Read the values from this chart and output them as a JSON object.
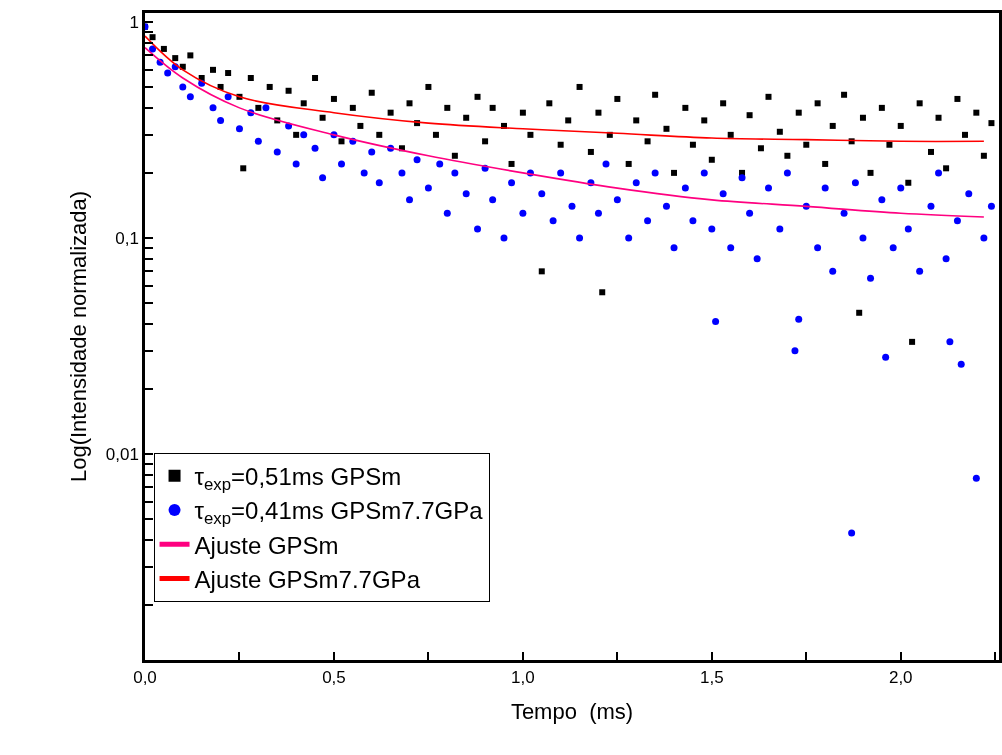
{
  "chart_data": {
    "type": "scatter",
    "xlabel": "Tempo  (ms)",
    "ylabel": "Log(Intensidade normalizada)",
    "log": "y",
    "xlim": [
      0,
      2.26
    ],
    "ylim": [
      0.00111,
      1.1
    ],
    "xticks": [
      {
        "value": 0,
        "label": "0,0"
      },
      {
        "value": 0.25,
        "label": null
      },
      {
        "value": 0.5,
        "label": "0,5"
      },
      {
        "value": 0.75,
        "label": null
      },
      {
        "value": 1.0,
        "label": "1,0"
      },
      {
        "value": 1.25,
        "label": null
      },
      {
        "value": 1.5,
        "label": "1,5"
      },
      {
        "value": 1.75,
        "label": null
      },
      {
        "value": 2.0,
        "label": "2,0"
      },
      {
        "value": 2.25,
        "label": null
      }
    ],
    "yticks": [
      {
        "value": 0.002,
        "label": null
      },
      {
        "value": 0.003,
        "label": null
      },
      {
        "value": 0.004,
        "label": null
      },
      {
        "value": 0.005,
        "label": null
      },
      {
        "value": 0.006,
        "label": null
      },
      {
        "value": 0.007,
        "label": null
      },
      {
        "value": 0.008,
        "label": null
      },
      {
        "value": 0.009,
        "label": null
      },
      {
        "value": 0.01,
        "label": "0,01"
      },
      {
        "value": 0.02,
        "label": null
      },
      {
        "value": 0.03,
        "label": null
      },
      {
        "value": 0.04,
        "label": null
      },
      {
        "value": 0.05,
        "label": null
      },
      {
        "value": 0.06,
        "label": null
      },
      {
        "value": 0.07,
        "label": null
      },
      {
        "value": 0.08,
        "label": null
      },
      {
        "value": 0.09,
        "label": null
      },
      {
        "value": 0.1,
        "label": "0,1"
      },
      {
        "value": 0.2,
        "label": null
      },
      {
        "value": 0.3,
        "label": null
      },
      {
        "value": 0.4,
        "label": null
      },
      {
        "value": 0.5,
        "label": null
      },
      {
        "value": 0.6,
        "label": null
      },
      {
        "value": 0.7,
        "label": null
      },
      {
        "value": 0.8,
        "label": null
      },
      {
        "value": 0.9,
        "label": null
      },
      {
        "value": 1,
        "label": "1"
      }
    ],
    "legend": "bottom left",
    "series": [
      {
        "name": "τ$_{exp}$=0,51ms GPSm",
        "marker": "square",
        "color": "#000000",
        "x": [
          0,
          0.02,
          0.05,
          0.08,
          0.1,
          0.12,
          0.15,
          0.18,
          0.2,
          0.22,
          0.25,
          0.26,
          0.28,
          0.3,
          0.33,
          0.35,
          0.38,
          0.4,
          0.42,
          0.45,
          0.47,
          0.5,
          0.52,
          0.55,
          0.57,
          0.6,
          0.62,
          0.65,
          0.68,
          0.7,
          0.72,
          0.75,
          0.77,
          0.8,
          0.82,
          0.85,
          0.88,
          0.9,
          0.92,
          0.95,
          0.97,
          1.0,
          1.02,
          1.05,
          1.07,
          1.1,
          1.12,
          1.15,
          1.18,
          1.2,
          1.21,
          1.23,
          1.25,
          1.28,
          1.3,
          1.33,
          1.35,
          1.38,
          1.4,
          1.43,
          1.45,
          1.48,
          1.5,
          1.53,
          1.55,
          1.58,
          1.6,
          1.63,
          1.65,
          1.68,
          1.7,
          1.73,
          1.75,
          1.78,
          1.8,
          1.82,
          1.85,
          1.87,
          1.89,
          1.9,
          1.92,
          1.95,
          1.97,
          2.0,
          2.02,
          2.03,
          2.05,
          2.08,
          2.1,
          2.12,
          2.15,
          2.17,
          2.2,
          2.22,
          2.24
        ],
        "values": [
          0.95,
          0.85,
          0.75,
          0.68,
          0.62,
          0.7,
          0.55,
          0.6,
          0.5,
          0.58,
          0.45,
          0.21,
          0.55,
          0.4,
          0.5,
          0.35,
          0.48,
          0.3,
          0.42,
          0.55,
          0.36,
          0.44,
          0.28,
          0.4,
          0.33,
          0.47,
          0.3,
          0.38,
          0.26,
          0.42,
          0.34,
          0.5,
          0.3,
          0.4,
          0.24,
          0.36,
          0.45,
          0.28,
          0.4,
          0.33,
          0.22,
          0.38,
          0.3,
          0.07,
          0.42,
          0.27,
          0.35,
          0.5,
          0.25,
          0.38,
          0.056,
          0.3,
          0.44,
          0.22,
          0.35,
          0.28,
          0.46,
          0.32,
          0.2,
          0.4,
          0.27,
          0.35,
          0.23,
          0.42,
          0.3,
          0.2,
          0.37,
          0.26,
          0.45,
          0.31,
          0.24,
          0.38,
          0.27,
          0.42,
          0.22,
          0.33,
          0.46,
          0.28,
          0.045,
          0.36,
          0.2,
          0.4,
          0.27,
          0.33,
          0.18,
          0.033,
          0.42,
          0.25,
          0.36,
          0.21,
          0.44,
          0.3,
          0.38,
          0.24,
          0.34
        ]
      },
      {
        "name": "τ$_{exp}$=0,41ms GPSm7.7GPa",
        "marker": "circle",
        "color": "#0000ff",
        "x": [
          0,
          0.02,
          0.04,
          0.06,
          0.08,
          0.1,
          0.12,
          0.15,
          0.18,
          0.2,
          0.22,
          0.25,
          0.28,
          0.3,
          0.32,
          0.35,
          0.38,
          0.4,
          0.42,
          0.45,
          0.47,
          0.5,
          0.52,
          0.55,
          0.58,
          0.6,
          0.62,
          0.65,
          0.68,
          0.7,
          0.72,
          0.75,
          0.78,
          0.8,
          0.82,
          0.85,
          0.88,
          0.9,
          0.92,
          0.95,
          0.97,
          1.0,
          1.02,
          1.05,
          1.08,
          1.1,
          1.13,
          1.15,
          1.18,
          1.2,
          1.22,
          1.25,
          1.28,
          1.3,
          1.33,
          1.35,
          1.38,
          1.4,
          1.43,
          1.45,
          1.48,
          1.5,
          1.51,
          1.53,
          1.55,
          1.58,
          1.6,
          1.62,
          1.65,
          1.68,
          1.7,
          1.72,
          1.73,
          1.75,
          1.78,
          1.8,
          1.82,
          1.85,
          1.87,
          1.88,
          1.9,
          1.92,
          1.95,
          1.96,
          1.98,
          2.0,
          2.02,
          2.05,
          2.08,
          2.1,
          2.12,
          2.13,
          2.15,
          2.16,
          2.18,
          2.2,
          2.22,
          2.24
        ],
        "values": [
          0.95,
          0.75,
          0.65,
          0.58,
          0.62,
          0.5,
          0.45,
          0.52,
          0.4,
          0.35,
          0.45,
          0.32,
          0.38,
          0.28,
          0.4,
          0.25,
          0.33,
          0.22,
          0.3,
          0.26,
          0.19,
          0.3,
          0.22,
          0.28,
          0.2,
          0.25,
          0.18,
          0.26,
          0.2,
          0.15,
          0.23,
          0.17,
          0.22,
          0.13,
          0.2,
          0.16,
          0.11,
          0.21,
          0.15,
          0.1,
          0.18,
          0.13,
          0.2,
          0.16,
          0.12,
          0.2,
          0.14,
          0.1,
          0.18,
          0.13,
          0.22,
          0.15,
          0.1,
          0.18,
          0.12,
          0.2,
          0.14,
          0.09,
          0.17,
          0.12,
          0.2,
          0.11,
          0.041,
          0.16,
          0.09,
          0.19,
          0.13,
          0.08,
          0.17,
          0.11,
          0.2,
          0.03,
          0.042,
          0.14,
          0.09,
          0.17,
          0.07,
          0.13,
          0.0043,
          0.18,
          0.1,
          0.065,
          0.15,
          0.028,
          0.09,
          0.17,
          0.11,
          0.07,
          0.14,
          0.2,
          0.08,
          0.033,
          0.12,
          0.026,
          0.16,
          0.0077,
          0.1,
          0.14
        ]
      },
      {
        "name": "Ajuste GPSm",
        "type": "line",
        "marker": "none",
        "line_style": "solid",
        "color": "#ff0080",
        "x": [
          0,
          0.1,
          0.25,
          0.5,
          0.75,
          1.0,
          1.25,
          1.5,
          1.75,
          2.0,
          2.22
        ],
        "values": [
          0.76,
          0.55,
          0.4,
          0.3,
          0.24,
          0.2,
          0.17,
          0.15,
          0.14,
          0.13,
          0.125
        ]
      },
      {
        "name": "Ajuste GPSm7.7GPa",
        "type": "line",
        "marker": "none",
        "line_style": "solid",
        "color": "#ff0000",
        "x": [
          0,
          0.1,
          0.25,
          0.5,
          0.75,
          1.0,
          1.25,
          1.5,
          1.75,
          2.0,
          2.22
        ],
        "values": [
          0.86,
          0.6,
          0.45,
          0.38,
          0.34,
          0.32,
          0.305,
          0.29,
          0.285,
          0.28,
          0.28
        ]
      }
    ]
  }
}
